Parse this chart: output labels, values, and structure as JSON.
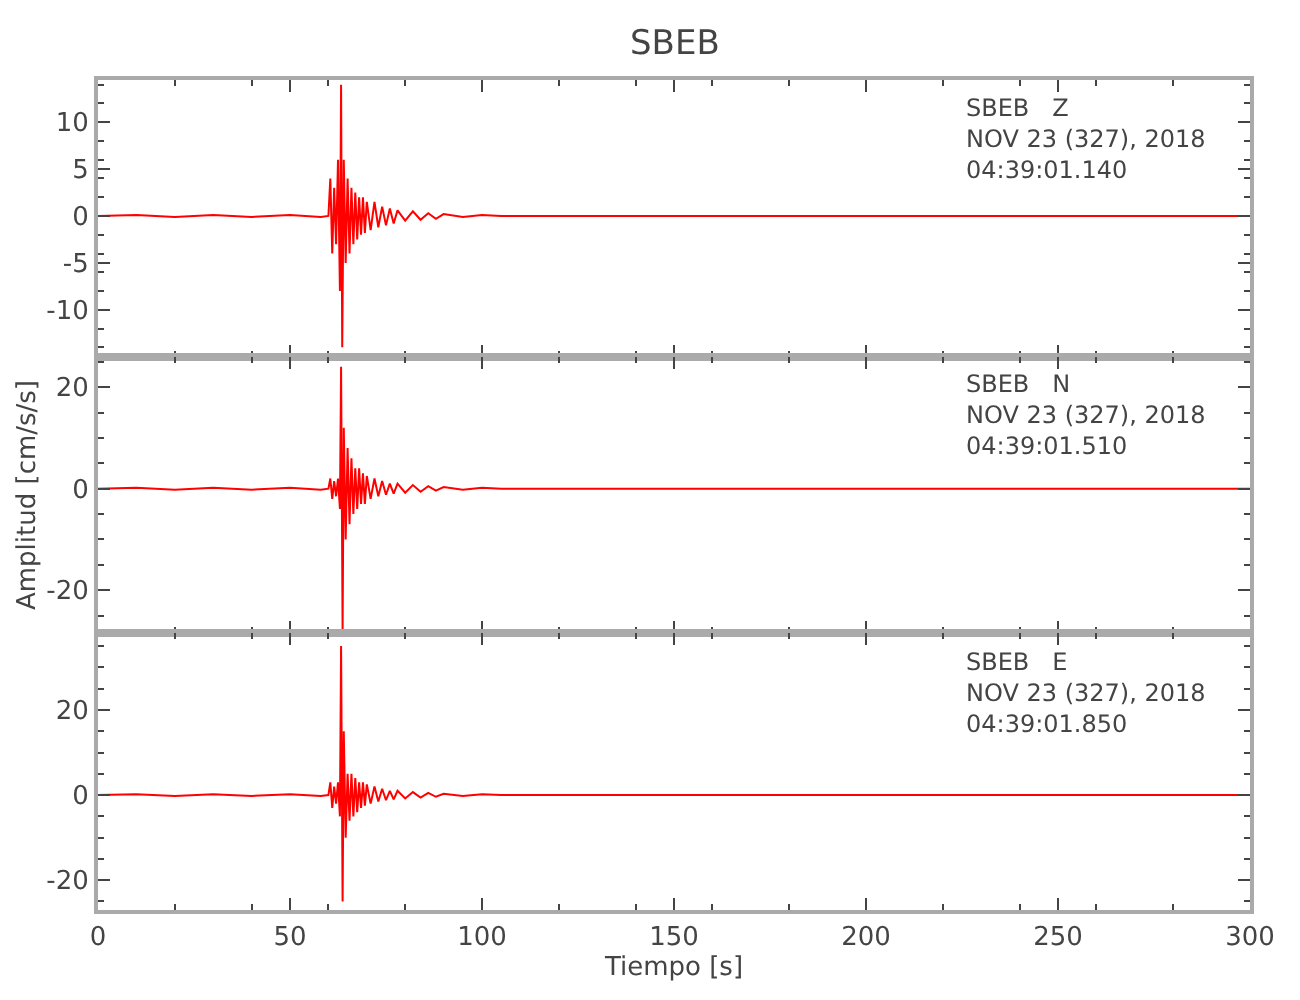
{
  "chart_data": [
    {
      "type": "line",
      "title": "SBEB",
      "annotations": [
        "SBEB   Z",
        "NOV 23 (327), 2018",
        "04:39:01.140"
      ],
      "tick_labels": "y",
      "marker": "none",
      "line_style": "solid",
      "xlim": [
        0,
        300
      ],
      "xticks": [
        0,
        50,
        100,
        150,
        200,
        250,
        300
      ],
      "ylim": [
        -15,
        14.5
      ],
      "yticks": [
        -10,
        -5,
        0,
        5,
        10
      ],
      "series": [
        {
          "color": "#ff0000",
          "x": [
            0,
            10,
            20,
            30,
            40,
            50,
            58,
            60,
            60.5,
            61,
            61.5,
            62,
            62.5,
            63,
            63.3,
            63.6,
            64,
            64.5,
            65,
            65.5,
            66,
            66.5,
            67,
            67.5,
            68,
            68.5,
            69,
            69.5,
            70,
            71,
            72,
            73,
            74,
            75,
            76,
            77,
            78,
            80,
            82,
            84,
            86,
            88,
            90,
            95,
            100,
            105,
            150,
            200,
            250,
            300
          ],
          "values": [
            0,
            0.1,
            -0.1,
            0.1,
            -0.1,
            0.1,
            -0.1,
            0,
            4,
            -4,
            3,
            -3,
            6,
            -8,
            14,
            -14,
            6,
            -5,
            4,
            -4,
            3,
            -3,
            2.5,
            -2.5,
            2,
            -2,
            2,
            -1.8,
            1.5,
            -1.5,
            1.5,
            -1.2,
            1,
            -1,
            0.8,
            -0.8,
            0.6,
            -0.5,
            0.5,
            -0.4,
            0.3,
            -0.3,
            0.2,
            -0.1,
            0.1,
            0,
            0,
            0,
            0,
            0
          ]
        }
      ]
    },
    {
      "type": "line",
      "ylabel": "Amplitud [cm/s/s]",
      "annotations": [
        "SBEB   N",
        "NOV 23 (327), 2018",
        "04:39:01.510"
      ],
      "tick_labels": "y",
      "marker": "none",
      "line_style": "solid",
      "xlim": [
        0,
        300
      ],
      "xticks": [
        0,
        50,
        100,
        150,
        200,
        250,
        300
      ],
      "ylim": [
        -28.5,
        26
      ],
      "yticks": [
        -20,
        0,
        20
      ],
      "series": [
        {
          "color": "#ff0000",
          "x": [
            0,
            10,
            20,
            30,
            40,
            50,
            58,
            60,
            60.5,
            61,
            61.5,
            62,
            62.5,
            63,
            63.3,
            63.7,
            64,
            64.5,
            65,
            65.5,
            66,
            66.5,
            67,
            67.5,
            68,
            68.5,
            69,
            69.5,
            70,
            71,
            72,
            73,
            74,
            75,
            76,
            77,
            78,
            80,
            82,
            84,
            86,
            88,
            90,
            95,
            100,
            105,
            150,
            200,
            250,
            300
          ],
          "values": [
            0,
            0.2,
            -0.2,
            0.2,
            -0.2,
            0.2,
            -0.2,
            0,
            2,
            -2,
            1.5,
            -1.5,
            2,
            -4,
            24,
            -28,
            12,
            -10,
            8,
            -7,
            6,
            -5,
            4,
            -4,
            4,
            -3,
            3,
            -3,
            2.5,
            -2,
            2,
            -1.5,
            1.5,
            -1.2,
            1,
            -1,
            1,
            -0.8,
            0.7,
            -0.6,
            0.5,
            -0.4,
            0.3,
            -0.2,
            0.2,
            0,
            0,
            0,
            0,
            0
          ]
        }
      ]
    },
    {
      "type": "line",
      "xlabel": "Tiempo [s]",
      "annotations": [
        "SBEB   E",
        "NOV 23 (327), 2018",
        "04:39:01.850"
      ],
      "marker": "none",
      "line_style": "solid",
      "xlim": [
        0,
        300
      ],
      "xticks": [
        0,
        50,
        100,
        150,
        200,
        250,
        300
      ],
      "ylim": [
        -27,
        38
      ],
      "yticks": [
        -20,
        0,
        20
      ],
      "series": [
        {
          "color": "#ff0000",
          "x": [
            0,
            10,
            20,
            30,
            40,
            50,
            58,
            60,
            60.5,
            61,
            61.5,
            62,
            62.5,
            63,
            63.3,
            63.7,
            64,
            64.5,
            65,
            65.5,
            66,
            66.5,
            67,
            67.5,
            68,
            68.5,
            69,
            69.5,
            70,
            71,
            72,
            73,
            74,
            75,
            76,
            77,
            78,
            80,
            82,
            84,
            86,
            88,
            90,
            95,
            100,
            105,
            150,
            200,
            250,
            300
          ],
          "values": [
            0,
            0.2,
            -0.2,
            0.2,
            -0.2,
            0.2,
            -0.2,
            0,
            3,
            -3,
            2,
            -2,
            3,
            -5,
            35,
            -25,
            15,
            -10,
            5,
            -6,
            5,
            -5,
            4,
            -4,
            3,
            -3,
            3,
            -2.5,
            2.5,
            -2,
            2,
            -1.5,
            1.5,
            -1.2,
            1,
            -1,
            1,
            -0.8,
            0.7,
            -0.6,
            0.5,
            -0.4,
            0.3,
            -0.2,
            0.2,
            0,
            0,
            0,
            0,
            0
          ]
        }
      ]
    }
  ]
}
